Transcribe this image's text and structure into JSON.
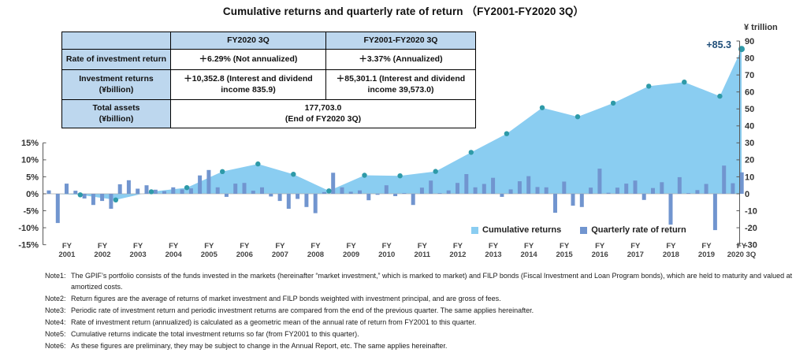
{
  "title": "Cumulative returns and quarterly rate of return （FY2001-FY2020 3Q）",
  "table": {
    "col_headers": [
      "",
      "FY2020 3Q",
      "FY2001-FY2020 3Q"
    ],
    "rows": [
      {
        "label": "Rate of investment return",
        "col1": "＋6.29% (Not annualized)",
        "col2": "＋3.37% (Annualized)"
      },
      {
        "label": "Investment returns\n(¥billion)",
        "col1": "＋10,352.8 (Interest and dividend\nincome 835.9)",
        "col2": "＋85,301.1 (Interest and dividend\nincome 39,573.0)"
      },
      {
        "label": "Total assets\n(¥billion)",
        "merged": "177,703.0\n(End of FY2020 3Q)"
      }
    ]
  },
  "legend": {
    "items": [
      {
        "label": "Cumulative returns"
      },
      {
        "label": "Quarterly rate of return"
      }
    ]
  },
  "annotation": {
    "text": "+85.3",
    "value": 85.3
  },
  "right_axis_title": "¥ trillion",
  "chart_data": {
    "type": "combo",
    "colors": {
      "area": "#8ACDF1",
      "bar": "#7195CF",
      "marker": "#2E9AA8",
      "annotation": "#1F4E79",
      "axis": "#595959",
      "zero_line": "#ADADAD",
      "tick_text": "#333333"
    },
    "left_axis": {
      "unit": "%",
      "min": -15,
      "max": 15,
      "tick_values": [
        15,
        10,
        5,
        0,
        -5,
        -10,
        -15
      ],
      "tick_labels": [
        "15%",
        "10%",
        "5%",
        "0%",
        "-5%",
        "-10%",
        "-15%"
      ]
    },
    "right_axis": {
      "unit": "¥ trillion",
      "min": -30,
      "max": 90,
      "tick_values": [
        90,
        80,
        70,
        60,
        50,
        40,
        30,
        20,
        10,
        0,
        -10,
        -20,
        -30
      ]
    },
    "x_axis": {
      "prefix": "FY",
      "years": [
        "2001",
        "2002",
        "2003",
        "2004",
        "2005",
        "2006",
        "2007",
        "2008",
        "2009",
        "2010",
        "2011",
        "2012",
        "2013",
        "2014",
        "2015",
        "2016",
        "2017",
        "2018",
        "2019",
        "2020 3Q"
      ]
    },
    "series": [
      {
        "name": "Cumulative returns",
        "type": "area",
        "axis": "right",
        "unit": "¥ trillion",
        "x_labels": [
          "FY2001",
          "FY2002",
          "FY2003",
          "FY2004",
          "FY2005",
          "FY2006",
          "FY2007",
          "FY2008",
          "FY2009",
          "FY2010",
          "FY2011",
          "FY2012",
          "FY2013",
          "FY2014",
          "FY2015",
          "FY2016",
          "FY2017",
          "FY2018",
          "FY2019",
          "FY2020 3Q"
        ],
        "values": [
          -0.6,
          -3.6,
          1.2,
          3.6,
          13.1,
          17.6,
          11.5,
          1.7,
          10.9,
          10.6,
          13.2,
          24.4,
          35.4,
          50.7,
          45.4,
          53.4,
          63.4,
          65.8,
          57.5,
          85.3
        ]
      },
      {
        "name": "Quarterly rate of return",
        "type": "bar",
        "axis": "left",
        "unit": "%",
        "start": "FY2001 Q1",
        "end": "FY2020 Q3",
        "quarters_per_year": 4,
        "values": [
          1.0,
          -8.6,
          3.0,
          0.9,
          -1.4,
          -3.3,
          -2.1,
          -4.4,
          2.8,
          4.0,
          1.5,
          2.5,
          1.2,
          0.8,
          1.9,
          1.3,
          1.6,
          5.4,
          7.0,
          1.9,
          -0.9,
          3.0,
          3.2,
          0.9,
          1.9,
          -0.8,
          -2.1,
          -4.4,
          -1.5,
          -3.9,
          -5.7,
          0.5,
          6.2,
          1.9,
          0.6,
          1.0,
          -1.9,
          -0.3,
          2.5,
          -0.7,
          0.2,
          -3.3,
          1.8,
          3.9,
          0.2,
          1.0,
          3.2,
          5.8,
          1.9,
          2.9,
          4.7,
          -0.9,
          1.3,
          3.7,
          5.2,
          2.0,
          1.9,
          -5.6,
          3.6,
          -3.5,
          -3.9,
          1.8,
          7.4,
          0.3,
          1.8,
          3.0,
          3.9,
          -1.8,
          1.7,
          3.4,
          -9.1,
          4.9,
          0.2,
          1.1,
          2.9,
          -10.7,
          8.3,
          3.1,
          6.3
        ]
      }
    ],
    "annotation": {
      "text": "+85.3",
      "series": "Cumulative returns",
      "x": "FY2020 3Q",
      "value": 85.3
    }
  },
  "notes": [
    {
      "id": "Note1:",
      "text": "The GPIF’s portfolio consists of the funds invested in the markets (hereinafter “market investment,” which is marked to market) and FILP bonds (Fiscal Investment and Loan Program bonds), which are held to maturity and valued at amortized costs."
    },
    {
      "id": "Note2:",
      "text": "Return figures are the average of returns of market investment and FILP bonds weighted with investment principal, and are gross of fees."
    },
    {
      "id": "Note3:",
      "text": "Periodic rate of investment return and periodic investment returns are compared from the end of the previous quarter. The same applies hereinafter."
    },
    {
      "id": "Note4:",
      "text": "Rate of investment return (annualized) is calculated as a geometric mean of the annual rate of return from FY2001 to this quarter."
    },
    {
      "id": "Note5:",
      "text": "Cumulative returns indicate the total investment returns so far (from FY2001 to this quarter)."
    },
    {
      "id": "Note6:",
      "text": "As these figures are preliminary, they may be subject to change in the Annual Report, etc. The same applies hereinafter."
    }
  ]
}
